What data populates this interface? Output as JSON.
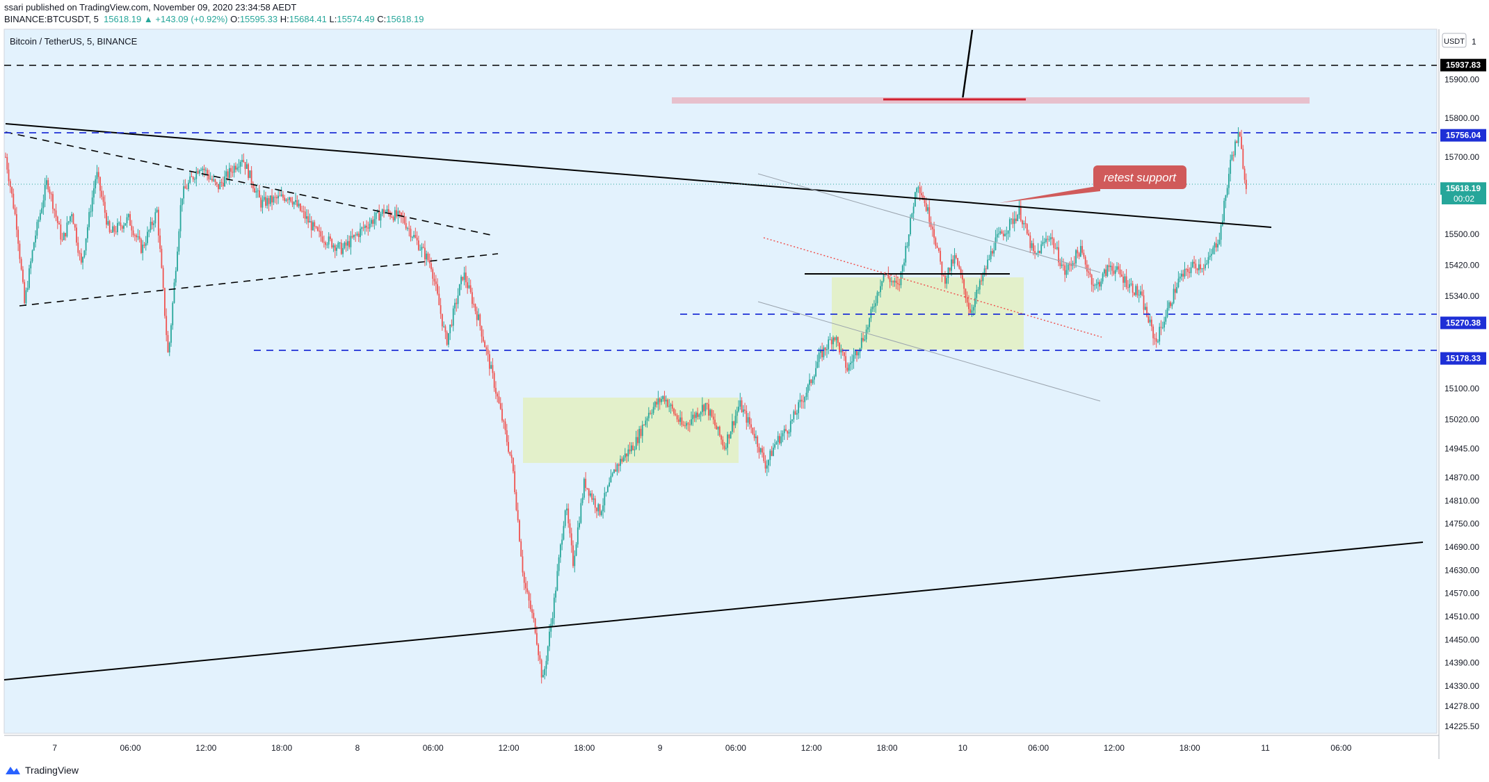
{
  "header": {
    "published": "ssari published on TradingView.com, November 09, 2020 23:34:58 AEDT",
    "symbol": "BINANCE:BTCUSDT, 5",
    "last": "15618.19",
    "change": "▲ +143.09 (+0.92%)",
    "o_label": "O:",
    "open": "15595.33",
    "h_label": "H:",
    "high": "15684.41",
    "l_label": "L:",
    "low": "15574.49",
    "c_label": "C:",
    "close": "15618.19"
  },
  "chart_title": "Bitcoin / TetherUS, 5, BINANCE",
  "currency_badge": "USDT",
  "annotation_text": "retest support",
  "countdown": "00:02",
  "footer_brand": "TradingView",
  "colors": {
    "background": "#e3f2fd",
    "up": "#26a69a",
    "down": "#ef5350",
    "level_blue": "#1e2fd6",
    "callout": "#d05a5a",
    "zone": "#e2efc4"
  },
  "chart_data": {
    "type": "candlestick",
    "y_ticks": [
      15900,
      15800,
      15700,
      15500,
      15420,
      15340,
      15100,
      15020,
      14945,
      14870,
      14810,
      14750,
      14690,
      14630,
      14570,
      14510,
      14450,
      14390,
      14330,
      14278,
      14225.5
    ],
    "y_tick_labels": [
      "15900.00",
      "15800.00",
      "15700.00",
      "15500.00",
      "15420.00",
      "15340.00",
      "15100.00",
      "15020.00",
      "14945.00",
      "14870.00",
      "14810.00",
      "14750.00",
      "14690.00",
      "14630.00",
      "14570.00",
      "14510.00",
      "14450.00",
      "14390.00",
      "14330.00",
      "14278.00",
      "14225.50"
    ],
    "y_top_partial_label": "1",
    "x_ticks": [
      "7",
      "06:00",
      "12:00",
      "18:00",
      "8",
      "06:00",
      "12:00",
      "18:00",
      "9",
      "06:00",
      "12:00",
      "18:00",
      "10",
      "06:00",
      "12:00",
      "18:00",
      "11",
      "06:00"
    ],
    "price_labels": [
      {
        "value": 15937.83,
        "label": "15937.83",
        "style": "black"
      },
      {
        "value": 15756.04,
        "label": "15756.04",
        "style": "blue"
      },
      {
        "value": 15618.19,
        "label": "15618.19",
        "style": "last"
      },
      {
        "value": 15270.38,
        "label": "15270.38",
        "style": "blue"
      },
      {
        "value": 15178.33,
        "label": "15178.33",
        "style": "blue"
      }
    ],
    "price_path": [
      [
        0,
        15700
      ],
      [
        0.6,
        15520
      ],
      [
        1,
        15320
      ],
      [
        1.5,
        15480
      ],
      [
        2.2,
        15640
      ],
      [
        3,
        15480
      ],
      [
        3.5,
        15560
      ],
      [
        4,
        15420
      ],
      [
        4.8,
        15660
      ],
      [
        5.5,
        15500
      ],
      [
        6.5,
        15540
      ],
      [
        7.2,
        15460
      ],
      [
        8,
        15560
      ],
      [
        8.6,
        15180
      ],
      [
        9.3,
        15600
      ],
      [
        10.3,
        15680
      ],
      [
        11.2,
        15620
      ],
      [
        12.5,
        15700
      ],
      [
        13.5,
        15580
      ],
      [
        15,
        15600
      ],
      [
        16.5,
        15500
      ],
      [
        17.8,
        15460
      ],
      [
        19,
        15520
      ],
      [
        20,
        15560
      ],
      [
        21,
        15540
      ],
      [
        22.5,
        15420
      ],
      [
        23.3,
        15220
      ],
      [
        24.2,
        15400
      ],
      [
        25,
        15280
      ],
      [
        25.8,
        15120
      ],
      [
        26.8,
        14900
      ],
      [
        27.4,
        14600
      ],
      [
        28,
        14480
      ],
      [
        28.4,
        14340
      ],
      [
        29,
        14550
      ],
      [
        29.6,
        14800
      ],
      [
        30,
        14650
      ],
      [
        30.6,
        14860
      ],
      [
        31.4,
        14780
      ],
      [
        32.3,
        14900
      ],
      [
        33.3,
        14960
      ],
      [
        34,
        15040
      ],
      [
        34.8,
        15080
      ],
      [
        35.8,
        15000
      ],
      [
        37,
        15060
      ],
      [
        38,
        14950
      ],
      [
        38.8,
        15060
      ],
      [
        39.6,
        14980
      ],
      [
        40.2,
        14900
      ],
      [
        40.7,
        14960
      ],
      [
        41.4,
        15000
      ],
      [
        42,
        15060
      ],
      [
        42.5,
        15110
      ],
      [
        43,
        15180
      ],
      [
        43.8,
        15240
      ],
      [
        44.5,
        15150
      ],
      [
        45.5,
        15250
      ],
      [
        46.4,
        15400
      ],
      [
        47.2,
        15360
      ],
      [
        47.8,
        15520
      ],
      [
        48.2,
        15640
      ],
      [
        49,
        15520
      ],
      [
        49.6,
        15380
      ],
      [
        50.2,
        15440
      ],
      [
        51,
        15300
      ],
      [
        51.6,
        15380
      ],
      [
        52.3,
        15480
      ],
      [
        53,
        15520
      ],
      [
        53.6,
        15560
      ],
      [
        54.4,
        15440
      ],
      [
        55.2,
        15500
      ],
      [
        56,
        15400
      ],
      [
        56.8,
        15460
      ],
      [
        57.6,
        15360
      ],
      [
        58.4,
        15420
      ],
      [
        59.2,
        15380
      ],
      [
        60,
        15340
      ],
      [
        60.8,
        15220
      ],
      [
        61.4,
        15300
      ],
      [
        62,
        15380
      ],
      [
        62.8,
        15420
      ],
      [
        63.5,
        15420
      ],
      [
        64.2,
        15500
      ],
      [
        64.8,
        15700
      ],
      [
        65.2,
        15760
      ],
      [
        65.6,
        15618
      ]
    ],
    "annotations": [
      {
        "type": "resistance_zone",
        "from": 43.5,
        "to": 83,
        "value": 15842
      },
      {
        "type": "segment",
        "from": 57,
        "to": 66.3,
        "value": 15845
      }
    ]
  }
}
